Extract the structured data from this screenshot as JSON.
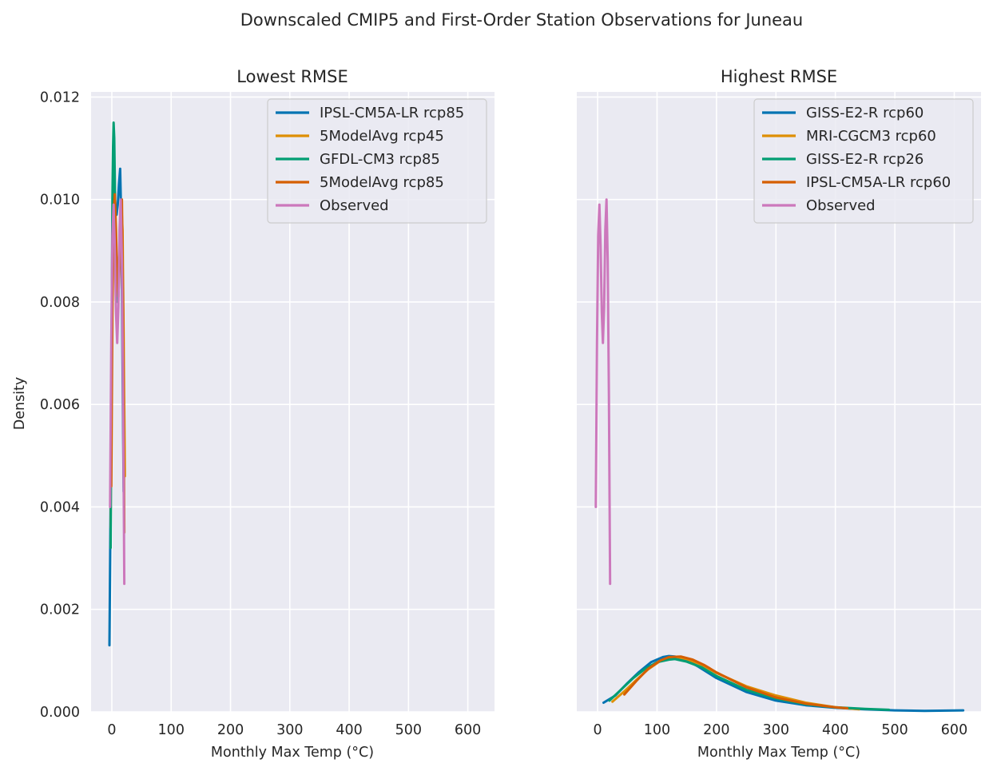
{
  "figure": {
    "suptitle": "Downscaled CMIP5 and First-Order Station Observations for Juneau"
  },
  "chart_data": [
    {
      "type": "line",
      "title": "Lowest RMSE",
      "xlabel": "Monthly Max Temp (°C)",
      "ylabel": "Density",
      "xlim": [
        -35,
        645
      ],
      "ylim": [
        0,
        0.0121
      ],
      "xticks": [
        0,
        100,
        200,
        300,
        400,
        500,
        600
      ],
      "xtick_labels": [
        "0",
        "100",
        "200",
        "300",
        "400",
        "500",
        "600"
      ],
      "yticks": [
        0,
        0.002,
        0.004,
        0.006,
        0.008,
        0.01,
        0.012
      ],
      "ytick_labels": [
        "0.000",
        "0.002",
        "0.004",
        "0.006",
        "0.008",
        "0.010",
        "0.012"
      ],
      "show_ytick_labels": true,
      "grid": true,
      "legend_position": "top-right",
      "series": [
        {
          "name": "IPSL-CM5A-LR rcp85",
          "color": "#0173b2",
          "x": [
            -4,
            -2,
            0,
            2,
            4,
            6,
            8,
            10,
            12,
            14,
            16,
            18,
            20
          ],
          "y": [
            0.0013,
            0.0042,
            0.0077,
            0.0096,
            0.0103,
            0.0099,
            0.0097,
            0.0099,
            0.0103,
            0.0106,
            0.0095,
            0.0068,
            0.0043
          ]
        },
        {
          "name": "5ModelAvg rcp45",
          "color": "#de8f05",
          "x": [
            -2,
            0,
            2,
            4,
            6,
            8,
            10,
            12,
            14,
            16,
            18,
            20,
            22
          ],
          "y": [
            0.0036,
            0.0074,
            0.0097,
            0.0104,
            0.0094,
            0.0082,
            0.008,
            0.0086,
            0.0094,
            0.0099,
            0.0094,
            0.0072,
            0.0046
          ]
        },
        {
          "name": "GFDL-CM3 rcp85",
          "color": "#029e73",
          "x": [
            -2,
            0,
            1,
            2,
            3,
            4,
            6,
            8,
            10,
            12,
            14,
            16,
            18,
            20
          ],
          "y": [
            0.0032,
            0.008,
            0.01,
            0.011,
            0.0115,
            0.0112,
            0.0096,
            0.0082,
            0.008,
            0.0086,
            0.0094,
            0.0099,
            0.0086,
            0.0052
          ]
        },
        {
          "name": "5ModelAvg rcp85",
          "color": "#d55e00",
          "x": [
            -1,
            1,
            3,
            5,
            7,
            9,
            11,
            13,
            15,
            17,
            19,
            21
          ],
          "y": [
            0.0044,
            0.0078,
            0.0097,
            0.0101,
            0.0094,
            0.0084,
            0.0081,
            0.0087,
            0.0096,
            0.01,
            0.0078,
            0.0035
          ]
        },
        {
          "name": "Observed",
          "color": "#cc78bc",
          "x": [
            -3,
            -1,
            1,
            3,
            5,
            7,
            9,
            11,
            13,
            15,
            17,
            19,
            21
          ],
          "y": [
            0.004,
            0.0072,
            0.0093,
            0.0099,
            0.0091,
            0.0078,
            0.0072,
            0.0079,
            0.0094,
            0.01,
            0.0088,
            0.0062,
            0.0025
          ]
        }
      ]
    },
    {
      "type": "line",
      "title": "Highest RMSE",
      "xlabel": "Monthly Max Temp (°C)",
      "ylabel": "",
      "xlim": [
        -35,
        645
      ],
      "ylim": [
        0,
        0.0121
      ],
      "xticks": [
        0,
        100,
        200,
        300,
        400,
        500,
        600
      ],
      "xtick_labels": [
        "0",
        "100",
        "200",
        "300",
        "400",
        "500",
        "600"
      ],
      "yticks": [
        0,
        0.002,
        0.004,
        0.006,
        0.008,
        0.01,
        0.012
      ],
      "ytick_labels": [
        "",
        "",
        "",
        "",
        "",
        "",
        ""
      ],
      "show_ytick_labels": false,
      "grid": true,
      "legend_position": "top-right",
      "series": [
        {
          "name": "GISS-E2-R rcp60",
          "color": "#0173b2",
          "x": [
            10,
            30,
            50,
            70,
            90,
            110,
            120,
            130,
            150,
            170,
            200,
            250,
            300,
            350,
            400,
            450,
            500,
            550,
            615
          ],
          "y": [
            0.00018,
            0.00032,
            0.00056,
            0.00078,
            0.00097,
            0.00107,
            0.00109,
            0.00108,
            0.00101,
            0.00088,
            0.00066,
            0.00039,
            0.00022,
            0.00013,
            8e-05,
            5e-05,
            3e-05,
            2e-05,
            3e-05
          ]
        },
        {
          "name": "MRI-CGCM3 rcp60",
          "color": "#de8f05",
          "x": [
            25,
            45,
            65,
            85,
            105,
            125,
            135,
            150,
            175,
            200,
            250,
            300,
            350,
            400,
            440
          ],
          "y": [
            0.0002,
            0.0004,
            0.00062,
            0.00083,
            0.00099,
            0.00106,
            0.00107,
            0.00103,
            0.00092,
            0.00076,
            0.0005,
            0.00032,
            0.00018,
            9e-05,
            5e-05
          ]
        },
        {
          "name": "GISS-E2-R rcp26",
          "color": "#029e73",
          "x": [
            20,
            40,
            60,
            80,
            100,
            120,
            130,
            150,
            175,
            200,
            250,
            300,
            350,
            400,
            450,
            490
          ],
          "y": [
            0.00022,
            0.00044,
            0.00066,
            0.00084,
            0.00097,
            0.00102,
            0.00103,
            0.00098,
            0.00087,
            0.0007,
            0.00043,
            0.00026,
            0.00015,
            9e-05,
            6e-05,
            4e-05
          ]
        },
        {
          "name": "IPSL-CM5A-LR rcp60",
          "color": "#d55e00",
          "x": [
            45,
            65,
            85,
            105,
            120,
            140,
            160,
            180,
            200,
            250,
            300,
            350,
            400,
            420
          ],
          "y": [
            0.00034,
            0.0006,
            0.00084,
            0.001,
            0.00107,
            0.00108,
            0.00102,
            0.00091,
            0.00077,
            0.00048,
            0.00028,
            0.00016,
            9e-05,
            7e-05
          ]
        },
        {
          "name": "Observed",
          "color": "#cc78bc",
          "x": [
            -3,
            -1,
            1,
            3,
            5,
            7,
            9,
            11,
            13,
            15,
            17,
            19,
            21
          ],
          "y": [
            0.004,
            0.0072,
            0.0093,
            0.0099,
            0.0091,
            0.0078,
            0.0072,
            0.0079,
            0.0094,
            0.01,
            0.0088,
            0.0062,
            0.0025
          ]
        }
      ]
    }
  ]
}
